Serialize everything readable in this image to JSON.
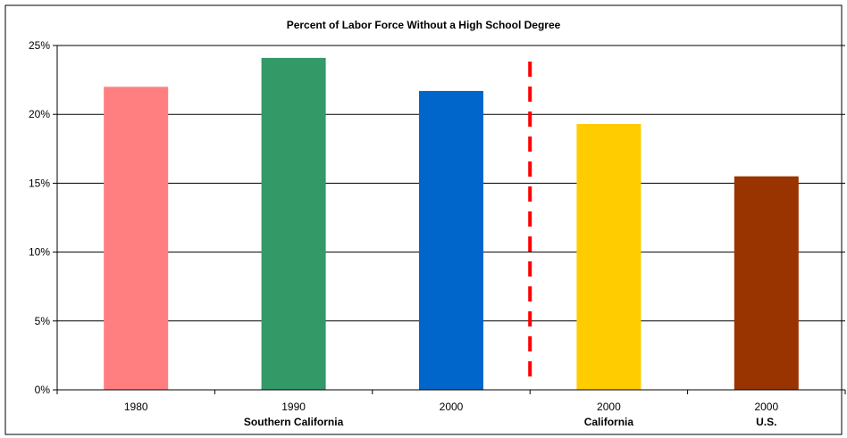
{
  "chart_data": {
    "type": "bar",
    "title": "Percent of Labor Force Without a High School Degree",
    "xlabel": "",
    "ylabel": "",
    "ylim": [
      0,
      25
    ],
    "y_ticks": [
      "0%",
      "5%",
      "10%",
      "15%",
      "20%",
      "25%"
    ],
    "y_tick_values": [
      0,
      5,
      10,
      15,
      20,
      25
    ],
    "categories": [
      "1980",
      "1990",
      "2000",
      "2000",
      "2000"
    ],
    "values": [
      22.0,
      24.1,
      21.7,
      19.3,
      15.5
    ],
    "bar_colors": [
      "#ff7f80",
      "#339966",
      "#0066cc",
      "#ffcc00",
      "#993300"
    ],
    "groups": [
      {
        "label": "Southern California",
        "under_category_index": 1
      },
      {
        "label": "California",
        "under_category_index": 3
      },
      {
        "label": "U.S.",
        "under_category_index": 4
      }
    ],
    "divider_color": "#ff0000",
    "grid": true,
    "legend": "none"
  }
}
